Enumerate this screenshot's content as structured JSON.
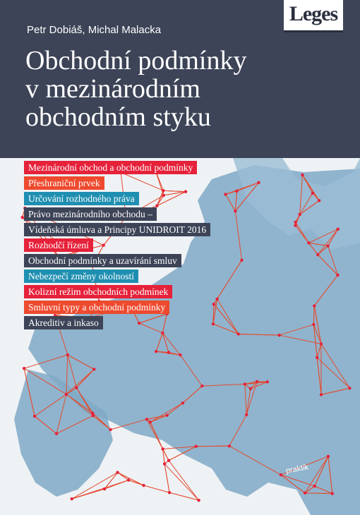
{
  "authors": "Petr Dobiáš, Michal Malacka",
  "title_lines": [
    "Obchodní podmínky",
    "v mezinárodním",
    "obchodním styku"
  ],
  "publisher_logo": "Leges",
  "series_badge": "praktik",
  "topics": [
    {
      "label": "Mezinárodní obchod a obchodní podmínky",
      "color": "#e6213a"
    },
    {
      "label": "Přeshraniční prvek",
      "color": "#ee4a2e"
    },
    {
      "label": "Určování rozhodného práva",
      "color": "#1f8fb1"
    },
    {
      "label": "Právo mezinárodního obchodu –",
      "color": "#3d4457"
    },
    {
      "label": "Vídeňská úmluva a Principy UNIDROIT 2016",
      "color": "#3d4457"
    },
    {
      "label": "Rozhodčí řízení",
      "color": "#e6213a"
    },
    {
      "label": "Obchodní podmínky a uzavírání smluv",
      "color": "#3d4457"
    },
    {
      "label": "Nebezpečí změny okolností",
      "color": "#1f8fb1"
    },
    {
      "label": "Kolizní režim obchodních podmínek",
      "color": "#e6213a"
    },
    {
      "label": "Smluvní typy a obchodní podmínky",
      "color": "#ee4a2e"
    },
    {
      "label": "Akreditiv a inkaso",
      "color": "#3d4457"
    }
  ],
  "colors": {
    "header_bg": "#3d4457",
    "map_land": "#7fa9c6",
    "network_line": "#e64a2e",
    "network_node": "#e6213a"
  }
}
